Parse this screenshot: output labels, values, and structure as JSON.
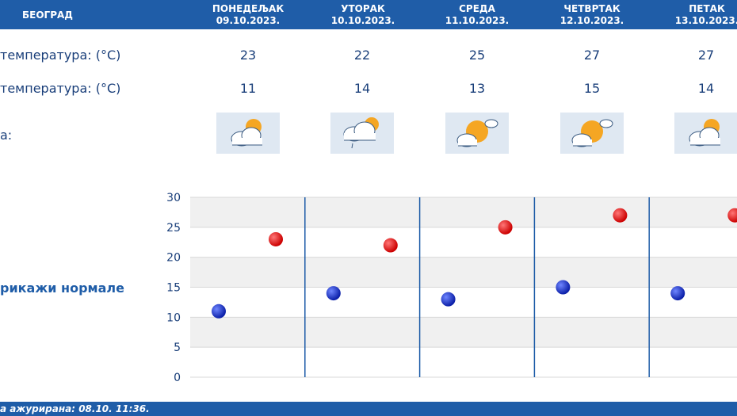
{
  "header": {
    "city": "БЕОГРАД",
    "days": [
      {
        "name": "ПОНЕДЕЉАК",
        "date": "09.10.2023."
      },
      {
        "name": "УТОРАК",
        "date": "10.10.2023."
      },
      {
        "name": "СРЕДА",
        "date": "11.10.2023."
      },
      {
        "name": "ЧЕТВРТАК",
        "date": "12.10.2023."
      },
      {
        "name": "ПЕТАК",
        "date": "13.10.2023."
      }
    ]
  },
  "rows": {
    "max_label": "температура: (°C)",
    "min_label": "температура: (°C)",
    "weather_label": "а:",
    "max": [
      "23",
      "22",
      "25",
      "27",
      "27"
    ],
    "min": [
      "11",
      "14",
      "13",
      "15",
      "14"
    ]
  },
  "icons": [
    "partly-cloudy-icon",
    "cloudy-light-rain-icon",
    "sunny-cloud-icon",
    "sunny-cloud-icon",
    "partly-cloudy-icon"
  ],
  "normals_label": "рикажи нормале",
  "footer": {
    "updated": "а ажурирана:  08.10. 11:36."
  },
  "colors": {
    "header": "#1f5da8",
    "max_point": "#cc0000",
    "min_point": "#0b1fa8",
    "text": "#1a3f7a"
  },
  "chart_data": {
    "type": "scatter",
    "categories": [
      "09.10.2023.",
      "10.10.2023.",
      "11.10.2023.",
      "12.10.2023.",
      "13.10.2023."
    ],
    "series": [
      {
        "values": [
          11,
          14,
          13,
          15,
          14
        ]
      },
      {
        "values": [
          23,
          22,
          25,
          27,
          27
        ]
      }
    ],
    "yticks": [
      "0",
      "5",
      "10",
      "15",
      "20",
      "25",
      "30"
    ],
    "ylim": [
      0,
      30
    ],
    "grid": true
  }
}
